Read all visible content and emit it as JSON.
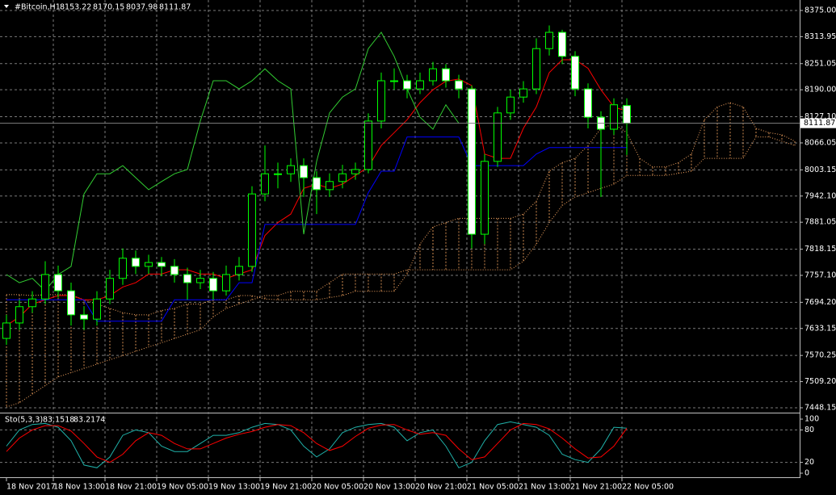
{
  "chart_data": [
    {
      "type": "candlestick",
      "symbol": "#Bitcoin,H1",
      "open": [
        7610,
        7646,
        7684,
        7702,
        7759,
        7721,
        7665,
        7655,
        7702,
        7750,
        7797,
        7778,
        7787,
        7778,
        7759,
        7740,
        7750,
        7721,
        7759,
        7778,
        7947,
        7994,
        7994,
        8013,
        7985,
        7957,
        7976,
        7994,
        8004,
        8117,
        8211,
        8211,
        8192,
        8211,
        8239,
        8211,
        8192,
        7853,
        8023,
        8136,
        8173,
        8192,
        8286,
        8324,
        8268,
        8192,
        8126,
        8098,
        8153.22
      ],
      "high": [
        7665,
        7700,
        7720,
        7790,
        7780,
        7740,
        7685,
        7720,
        7770,
        7820,
        7815,
        7805,
        7800,
        7795,
        7775,
        7770,
        7765,
        7780,
        7800,
        7965,
        8060,
        8020,
        8030,
        8030,
        8000,
        7995,
        8015,
        8020,
        8135,
        8230,
        8240,
        8225,
        8230,
        8255,
        8250,
        8225,
        8200,
        8040,
        8150,
        8190,
        8210,
        8310,
        8340,
        8330,
        8280,
        8205,
        8140,
        8170,
        8170.15
      ],
      "low": [
        7595,
        7630,
        7670,
        7690,
        7705,
        7640,
        7630,
        7640,
        7690,
        7735,
        7760,
        7760,
        7755,
        7740,
        7700,
        7725,
        7700,
        7710,
        7745,
        7765,
        7930,
        7960,
        7975,
        7940,
        7900,
        7940,
        7960,
        7980,
        7995,
        8100,
        8190,
        8170,
        8180,
        8200,
        8195,
        8170,
        7820,
        7830,
        8010,
        8120,
        8160,
        8180,
        8270,
        8250,
        8175,
        8100,
        7940,
        8085,
        8037.98
      ],
      "close": [
        7646,
        7684,
        7702,
        7759,
        7721,
        7665,
        7655,
        7702,
        7750,
        7797,
        7778,
        7787,
        7778,
        7759,
        7740,
        7750,
        7721,
        7759,
        7778,
        7947,
        7994,
        7994,
        8013,
        7985,
        7957,
        7976,
        7994,
        8004,
        8117,
        8211,
        8211,
        8192,
        8211,
        8239,
        8211,
        8192,
        7853,
        8023,
        8136,
        8173,
        8192,
        8286,
        8324,
        8268,
        8192,
        8126,
        8098,
        8155,
        8111.87
      ],
      "up_color": "#000000",
      "down_color": "#ffffff",
      "wick_color": "#00ff00",
      "lines": [
        {
          "color": "#ff0000",
          "style": "solid",
          "values": [
            7640,
            7660,
            7690,
            7700,
            7710,
            7710,
            7700,
            7700,
            7710,
            7730,
            7740,
            7760,
            7760,
            7770,
            7770,
            7760,
            7760,
            7750,
            7760,
            7770,
            7850,
            7880,
            7900,
            7960,
            7970,
            7960,
            7970,
            7990,
            8010,
            8060,
            8090,
            8120,
            8160,
            8190,
            8210,
            8215,
            8200,
            8040,
            8030,
            8030,
            8100,
            8150,
            8230,
            8260,
            8260,
            8240,
            8190,
            8150,
            8140,
            null,
            null,
            null,
            null,
            null,
            null,
            null,
            null,
            null,
            null,
            null,
            null,
            null
          ]
        },
        {
          "color": "#0000ff",
          "style": "solid",
          "values": [
            7700,
            7700,
            7700,
            7700,
            7700,
            7700,
            7700,
            7650,
            7650,
            7650,
            7650,
            7650,
            7650,
            7700,
            7700,
            7700,
            7700,
            7700,
            7740,
            7740,
            7876,
            7876,
            7876,
            7876,
            7876,
            7876,
            7876,
            7876,
            7950,
            8000,
            8000,
            8080,
            8080,
            8080,
            8080,
            8080,
            8013,
            8013,
            8013,
            8013,
            8013,
            8040,
            8055,
            8055,
            8055,
            8055,
            8055,
            8055,
            8055,
            null,
            null,
            null,
            null,
            null,
            null,
            null,
            null,
            null,
            null,
            null,
            null,
            null
          ]
        },
        {
          "color": "#32cd32",
          "style": "solid",
          "values": [
            7759,
            7740,
            7750,
            7721,
            7759,
            7778,
            7947,
            7994,
            7994,
            8013,
            7985,
            7957,
            7976,
            7994,
            8004,
            8117,
            8211,
            8211,
            8192,
            8211,
            8239,
            8211,
            8192,
            7853,
            8023,
            8136,
            8173,
            8192,
            8286,
            8324,
            8268,
            8192,
            8126,
            8098,
            8155,
            8111.87,
            null,
            null,
            null,
            null,
            null,
            null,
            null,
            null,
            null,
            null,
            null,
            null,
            null,
            null,
            null,
            null,
            null,
            null,
            null,
            null,
            null,
            null,
            null,
            null,
            null,
            null
          ]
        }
      ],
      "cloud": {
        "color": "#f4a460",
        "span_a": [
          7712,
          7712,
          7710,
          7712,
          7712,
          7712,
          7700,
          7690,
          7680,
          7670,
          7665,
          7665,
          7675,
          7680,
          7690,
          7690,
          7700,
          7700,
          7710,
          7710,
          7702,
          7700,
          7700,
          7700,
          7700,
          7705,
          7710,
          7720,
          7720,
          7720,
          7720,
          7760,
          7830,
          7870,
          7880,
          7890,
          7890,
          7890,
          7890,
          7890,
          7900,
          7930,
          8000,
          8020,
          8030,
          8060,
          8100,
          8110,
          8090,
          8030,
          8010,
          8010,
          8020,
          8040,
          8120,
          8150,
          8160,
          8150,
          8100,
          8090,
          8085,
          8070
        ],
        "span_b": [
          7450,
          7460,
          7480,
          7500,
          7520,
          7530,
          7540,
          7550,
          7560,
          7570,
          7580,
          7590,
          7600,
          7610,
          7620,
          7630,
          7660,
          7680,
          7690,
          7700,
          7710,
          7710,
          7720,
          7720,
          7720,
          7740,
          7760,
          7760,
          7760,
          7760,
          7760,
          7770,
          7770,
          7770,
          7770,
          7770,
          7770,
          7770,
          7770,
          7770,
          7790,
          7830,
          7880,
          7920,
          7940,
          7950,
          7960,
          7970,
          7990,
          7990,
          7990,
          7990,
          7995,
          8000,
          8030,
          8030,
          8030,
          8030,
          8080,
          8080,
          8070,
          8060
        ]
      },
      "xlim": [
        -0.5,
        61.375
      ],
      "xticks": [
        {
          "value": 0,
          "label": "18 Nov 2017"
        },
        {
          "value": 3.625,
          "label": "18 Nov 13:00"
        },
        {
          "value": 7.625,
          "label": "18 Nov 21:00"
        },
        {
          "value": 11.625,
          "label": "19 Nov 05:00"
        },
        {
          "value": 15.625,
          "label": "19 Nov 13:00"
        },
        {
          "value": 19.625,
          "label": "19 Nov 21:00"
        },
        {
          "value": 23.625,
          "label": "20 Nov 05:00"
        },
        {
          "value": 27.625,
          "label": "20 Nov 13:00"
        },
        {
          "value": 31.625,
          "label": "20 Nov 21:00"
        },
        {
          "value": 35.625,
          "label": "21 Nov 05:00"
        },
        {
          "value": 39.625,
          "label": "21 Nov 13:00"
        },
        {
          "value": 43.625,
          "label": "21 Nov 21:00"
        },
        {
          "value": 47.625,
          "label": "22 Nov 05:00"
        }
      ],
      "ylim": [
        7438.7,
        8390
      ],
      "yticks": [
        {
          "value": 8375,
          "label": "8375.00"
        },
        {
          "value": 8313.95,
          "label": "8313.95"
        },
        {
          "value": 8251.05,
          "label": "8251.05"
        },
        {
          "value": 8190,
          "label": "8190.00"
        },
        {
          "value": 8127.1,
          "label": "8127.10"
        },
        {
          "value": 8066.05,
          "label": "8066.05"
        },
        {
          "value": 8003.15,
          "label": "8003.15"
        },
        {
          "value": 7942.1,
          "label": "7942.10"
        },
        {
          "value": 7881.05,
          "label": "7881.05"
        },
        {
          "value": 7818.15,
          "label": "7818.15"
        },
        {
          "value": 7757.1,
          "label": "7757.10"
        },
        {
          "value": 7694.2,
          "label": "7694.20"
        },
        {
          "value": 7633.15,
          "label": "7633.15"
        },
        {
          "value": 7570.25,
          "label": "7570.25"
        },
        {
          "value": 7509.2,
          "label": "7509.20"
        },
        {
          "value": 7448.15,
          "label": "7448.15"
        }
      ],
      "grid": true
    },
    {
      "type": "line",
      "title": "Sto(5,3,3)",
      "series": [
        {
          "color": "#20b2aa",
          "values": [
            50,
            80,
            90,
            92,
            85,
            60,
            15,
            10,
            30,
            70,
            80,
            75,
            50,
            40,
            40,
            55,
            70,
            70,
            75,
            85,
            92,
            90,
            80,
            50,
            30,
            45,
            75,
            85,
            90,
            92,
            85,
            60,
            75,
            80,
            50,
            10,
            20,
            60,
            90,
            95,
            90,
            85,
            70,
            35,
            25,
            20,
            45,
            85,
            83.1518
          ]
        },
        {
          "color": "#ff0000",
          "values": [
            40,
            65,
            80,
            88,
            88,
            78,
            55,
            30,
            20,
            35,
            60,
            75,
            70,
            55,
            45,
            45,
            55,
            65,
            72,
            77,
            85,
            90,
            88,
            75,
            55,
            42,
            50,
            68,
            83,
            89,
            90,
            80,
            72,
            75,
            70,
            45,
            25,
            30,
            55,
            80,
            92,
            90,
            82,
            65,
            45,
            28,
            30,
            50,
            83.2174
          ]
        }
      ],
      "xlim": [
        -0.5,
        61.375
      ],
      "ylim": [
        -6,
        109
      ],
      "yticks": [
        100,
        80,
        20,
        0
      ],
      "levels": [
        80,
        20
      ],
      "grid": true
    }
  ]
}
